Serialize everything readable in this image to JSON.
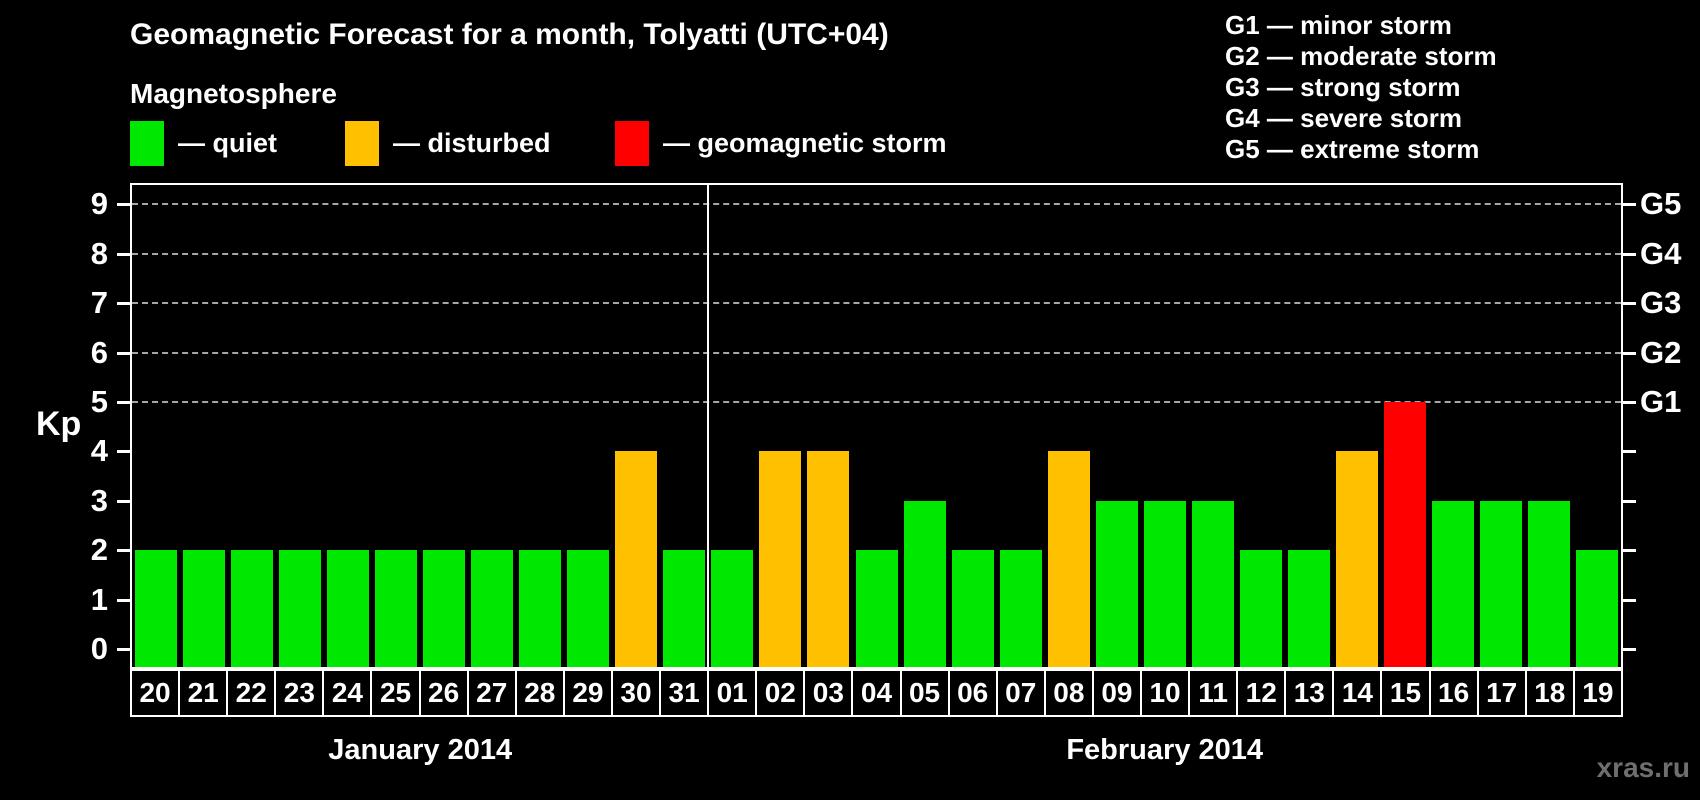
{
  "title": "Geomagnetic Forecast for a month, Tolyatti (UTC+04)",
  "legend": {
    "heading": "Magnetosphere",
    "items": [
      {
        "state": "quiet",
        "label": "— quiet"
      },
      {
        "state": "disturbed",
        "label": "— disturbed"
      },
      {
        "state": "storm",
        "label": "— geomagnetic storm"
      }
    ]
  },
  "g_legend": {
    "rows": [
      "G1 — minor storm",
      "G2 — moderate storm",
      "G3 — strong storm",
      "G4 — severe storm",
      "G5 — extreme storm"
    ]
  },
  "axes": {
    "left_label": "Kp",
    "left_tick_labels": [
      "0",
      "1",
      "2",
      "3",
      "4",
      "5",
      "6",
      "7",
      "8",
      "9"
    ],
    "right_tick_labels": [
      {
        "label": "G1",
        "kp": 5
      },
      {
        "label": "G2",
        "kp": 6
      },
      {
        "label": "G3",
        "kp": 7
      },
      {
        "label": "G4",
        "kp": 8
      },
      {
        "label": "G5",
        "kp": 9
      }
    ]
  },
  "chart_data": {
    "type": "bar",
    "title": "Geomagnetic Forecast for a month, Tolyatti (UTC+04)",
    "ylabel": "Kp",
    "ylim": [
      0,
      9
    ],
    "grid": "dashed horizontal at Kp 5-9 only",
    "gridlines_kp": [
      5,
      6,
      7,
      8,
      9
    ],
    "months": [
      {
        "label": "January 2014",
        "count": 12
      },
      {
        "label": "February 2014",
        "count": 19
      }
    ],
    "days": [
      "20",
      "21",
      "22",
      "23",
      "24",
      "25",
      "26",
      "27",
      "28",
      "29",
      "30",
      "31",
      "01",
      "02",
      "03",
      "04",
      "05",
      "06",
      "07",
      "08",
      "09",
      "10",
      "11",
      "12",
      "13",
      "14",
      "15",
      "16",
      "17",
      "18",
      "19"
    ],
    "values": [
      2,
      2,
      2,
      2,
      2,
      2,
      2,
      2,
      2,
      2,
      4,
      2,
      2,
      4,
      4,
      2,
      3,
      2,
      2,
      4,
      3,
      3,
      3,
      2,
      2,
      4,
      5,
      3,
      3,
      3,
      2
    ],
    "states": [
      "quiet",
      "quiet",
      "quiet",
      "quiet",
      "quiet",
      "quiet",
      "quiet",
      "quiet",
      "quiet",
      "quiet",
      "disturbed",
      "quiet",
      "quiet",
      "disturbed",
      "disturbed",
      "quiet",
      "quiet",
      "quiet",
      "quiet",
      "disturbed",
      "quiet",
      "quiet",
      "quiet",
      "quiet",
      "quiet",
      "disturbed",
      "storm",
      "quiet",
      "quiet",
      "quiet",
      "quiet"
    ]
  },
  "colors": {
    "quiet": "#00e800",
    "disturbed": "#ffc000",
    "storm": "#ff0000",
    "grid": "#a6a6a6",
    "text": "#ffffff",
    "watermark": "#6f6f6f"
  },
  "watermark": "xras.ru"
}
